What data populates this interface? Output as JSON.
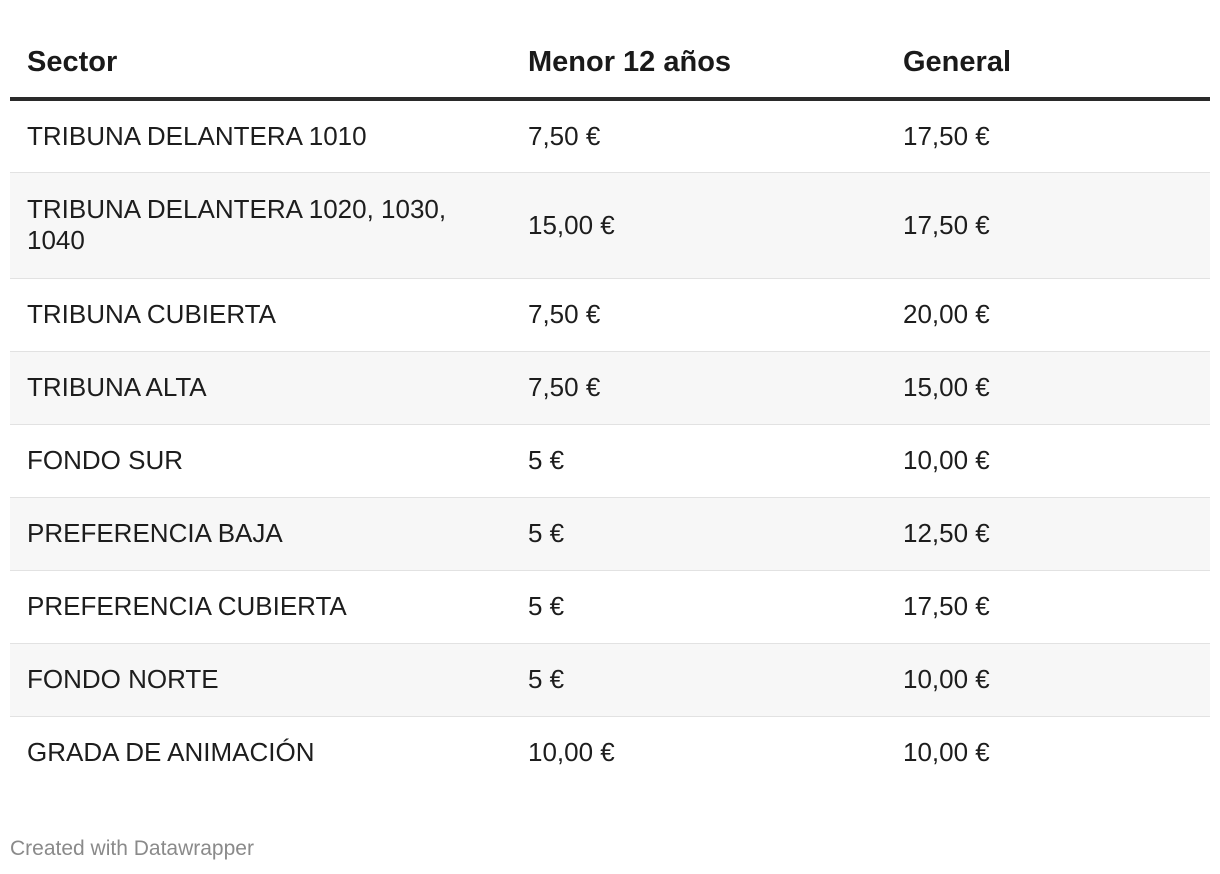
{
  "chart_data": {
    "type": "table",
    "columns": [
      "Sector",
      "Menor 12 años",
      "General"
    ],
    "rows": [
      [
        "TRIBUNA DELANTERA 1010",
        "7,50 €",
        "17,50 €"
      ],
      [
        "TRIBUNA DELANTERA 1020, 1030, 1040",
        "15,00 €",
        "17,50 €"
      ],
      [
        "TRIBUNA CUBIERTA",
        "7,50 €",
        "20,00 €"
      ],
      [
        "TRIBUNA ALTA",
        "7,50 €",
        "15,00 €"
      ],
      [
        "FONDO SUR",
        "5 €",
        "10,00 €"
      ],
      [
        "PREFERENCIA BAJA",
        "5 €",
        "12,50 €"
      ],
      [
        "PREFERENCIA CUBIERTA",
        "5 €",
        "17,50 €"
      ],
      [
        "FONDO NORTE",
        "5 €",
        "10,00 €"
      ],
      [
        "GRADA DE ANIMACIÓN",
        "10,00 €",
        "10,00 €"
      ]
    ]
  },
  "footer": {
    "credit": "Created with Datawrapper"
  }
}
